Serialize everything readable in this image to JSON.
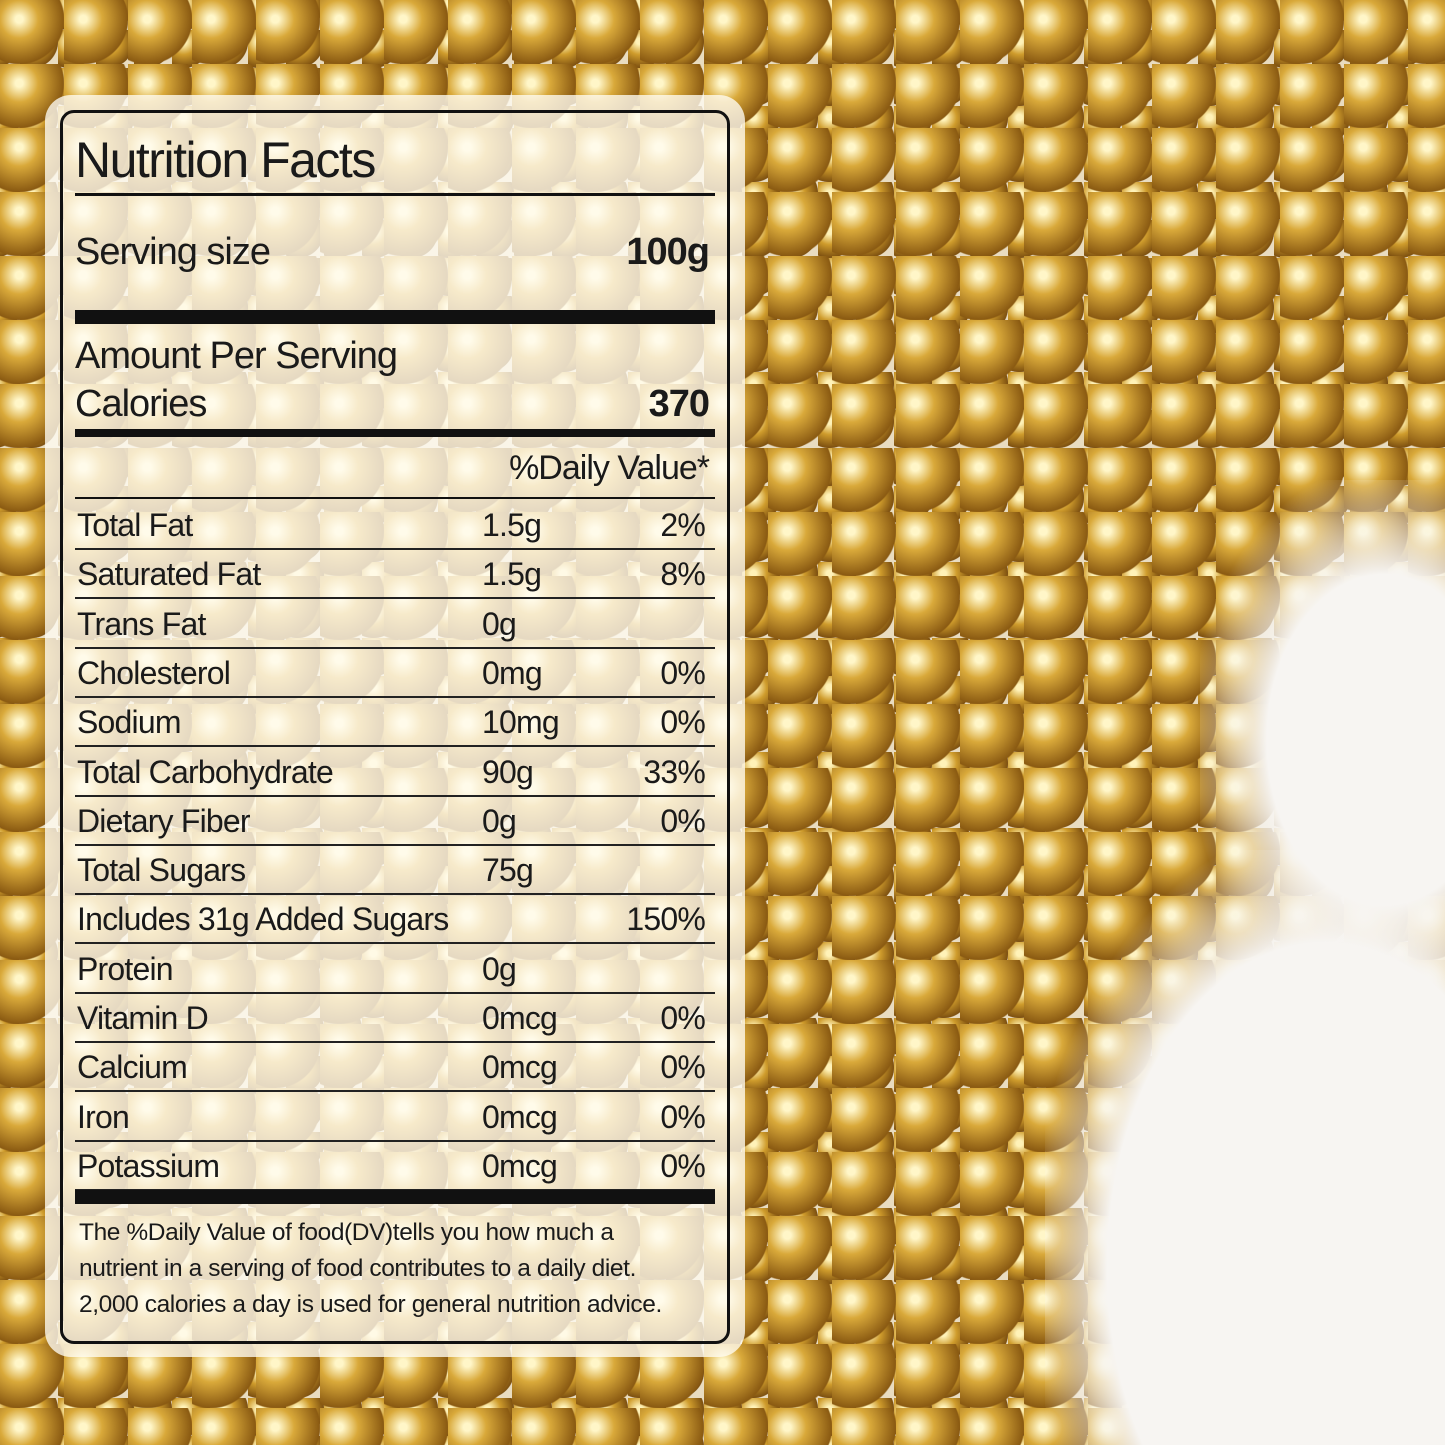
{
  "nutrition_facts": {
    "title": "Nutrition Facts",
    "serving_size_label": "Serving size",
    "serving_size_value": "100g",
    "amount_per_serving_label": "Amount Per Serving",
    "calories_label": "Calories",
    "calories_value": "370",
    "daily_value_header": "%Daily Value*",
    "rows": [
      {
        "name": "Total Fat",
        "amount": "1.5g",
        "dv": "2%"
      },
      {
        "name": "Saturated Fat",
        "amount": "1.5g",
        "dv": "8%"
      },
      {
        "name": "Trans Fat",
        "amount": "0g",
        "dv": ""
      },
      {
        "name": "Cholesterol",
        "amount": "0mg",
        "dv": "0%"
      },
      {
        "name": "Sodium",
        "amount": "10mg",
        "dv": "0%"
      },
      {
        "name": "Total Carbohydrate",
        "amount": "90g",
        "dv": "33%"
      },
      {
        "name": "Dietary Fiber",
        "amount": "0g",
        "dv": "0%"
      },
      {
        "name": "Total Sugars",
        "amount": "75g",
        "dv": ""
      },
      {
        "name": "Includes 31g Added Sugars",
        "amount": "",
        "dv": "150%"
      },
      {
        "name": "Protein",
        "amount": "0g",
        "dv": ""
      },
      {
        "name": "Vitamin D",
        "amount": "0mcg",
        "dv": "0%"
      },
      {
        "name": "Calcium",
        "amount": "0mcg",
        "dv": "0%"
      },
      {
        "name": "Iron",
        "amount": "0mcg",
        "dv": "0%"
      },
      {
        "name": "Potassium",
        "amount": "0mcg",
        "dv": "0%"
      }
    ],
    "footnote_lines": [
      "The %Daily Value of food(DV)tells you how much a",
      "nutrient in a serving of food contributes to a daily diet.",
      "2,000 calories a day is used for general nutrition advice."
    ]
  }
}
